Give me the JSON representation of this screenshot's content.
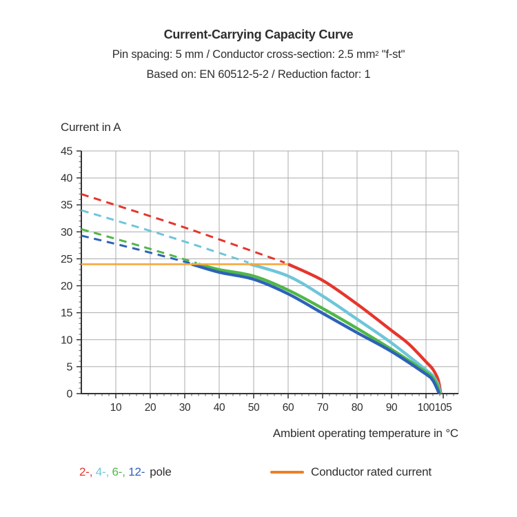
{
  "header": {
    "title": "Current-Carrying Capacity Curve",
    "subtitle1": {
      "text": "Pin spacing: 5 mm / Conductor cross-section: 2.5 mm",
      "sup": "2",
      "tail": " \"f-st\""
    },
    "subtitle2": "Based on: EN 60512-5-2 / Reduction factor: 1"
  },
  "chart_data": {
    "type": "line",
    "title": "Current-Carrying Capacity Curve",
    "y_axis_label": "Current in A",
    "x_axis_label": "Ambient operating temperature in °C",
    "xlim": [
      0,
      109.4
    ],
    "ylim": [
      0,
      45
    ],
    "x_ticks": [
      10,
      20,
      30,
      40,
      50,
      60,
      70,
      80,
      90,
      100,
      105
    ],
    "y_ticks": [
      0,
      5,
      10,
      15,
      20,
      25,
      30,
      35,
      40,
      45
    ],
    "x_gridlines": [
      10,
      20,
      30,
      40,
      50,
      60,
      70,
      80,
      90,
      100
    ],
    "y_gridlines": [
      5,
      10,
      15,
      20,
      25,
      30,
      35,
      40,
      45
    ],
    "grid": true,
    "legend_position": "bottom",
    "colors": {
      "grid": "#ababab",
      "axis": "#333333",
      "text": "#2e2e2e"
    },
    "rated_current": {
      "label": "Conductor rated current",
      "value": 24,
      "x_start": 0,
      "x_end": 60,
      "color": "#f6a73c"
    },
    "series": [
      {
        "name": "2-pole",
        "color": "#e5362d",
        "capacity_dashed": [
          [
            0,
            37
          ],
          [
            30,
            30.8
          ],
          [
            59,
            24.3
          ]
        ],
        "derated_solid": [
          [
            60,
            24
          ],
          [
            70,
            21
          ],
          [
            80,
            16.6
          ],
          [
            90,
            11.7
          ],
          [
            95,
            9.2
          ],
          [
            100,
            5.9
          ],
          [
            102,
            4.5
          ],
          [
            103.5,
            2.6
          ],
          [
            104.3,
            0
          ]
        ]
      },
      {
        "name": "4-pole",
        "color": "#6ec6d9",
        "capacity_dashed": [
          [
            0,
            34
          ],
          [
            25,
            29.2
          ],
          [
            48.5,
            24.3
          ]
        ],
        "derated_solid": [
          [
            49,
            24
          ],
          [
            60,
            21.8
          ],
          [
            70,
            18.1
          ],
          [
            80,
            13.8
          ],
          [
            90,
            9.4
          ],
          [
            100,
            4.4
          ],
          [
            102,
            3.3
          ],
          [
            103.4,
            1.8
          ],
          [
            104.2,
            0
          ]
        ]
      },
      {
        "name": "6-pole",
        "color": "#50b748",
        "capacity_dashed": [
          [
            0,
            30.5
          ],
          [
            17,
            27.4
          ],
          [
            33.5,
            24.2
          ]
        ],
        "derated_solid": [
          [
            34,
            24
          ],
          [
            40,
            23
          ],
          [
            50,
            21.8
          ],
          [
            60,
            19.2
          ],
          [
            70,
            15.8
          ],
          [
            80,
            12.1
          ],
          [
            90,
            8.2
          ],
          [
            100,
            4
          ],
          [
            102,
            2.9
          ],
          [
            103.3,
            1.5
          ],
          [
            104,
            0
          ]
        ]
      },
      {
        "name": "12-pole",
        "color": "#2d62b8",
        "capacity_dashed": [
          [
            0,
            29.3
          ],
          [
            16,
            26.8
          ],
          [
            31.5,
            24.2
          ]
        ],
        "derated_solid": [
          [
            32,
            24
          ],
          [
            40,
            22.5
          ],
          [
            50,
            21.2
          ],
          [
            60,
            18.5
          ],
          [
            70,
            14.9
          ],
          [
            80,
            11.3
          ],
          [
            90,
            7.8
          ],
          [
            100,
            3.6
          ],
          [
            101.8,
            2.6
          ],
          [
            103,
            1.2
          ],
          [
            103.8,
            0
          ]
        ]
      }
    ]
  },
  "legend": {
    "pole_entries": [
      {
        "label": "2-",
        "color": "#e5362d"
      },
      {
        "label": "4-",
        "color": "#6ec6d9"
      },
      {
        "label": "6-",
        "color": "#50b748"
      },
      {
        "label": "12-",
        "color": "#2d62b8"
      }
    ],
    "pole_separator": ", ",
    "pole_suffix": "pole",
    "rated": {
      "label": "Conductor rated current",
      "swatch_color": "#ee7f27"
    }
  }
}
